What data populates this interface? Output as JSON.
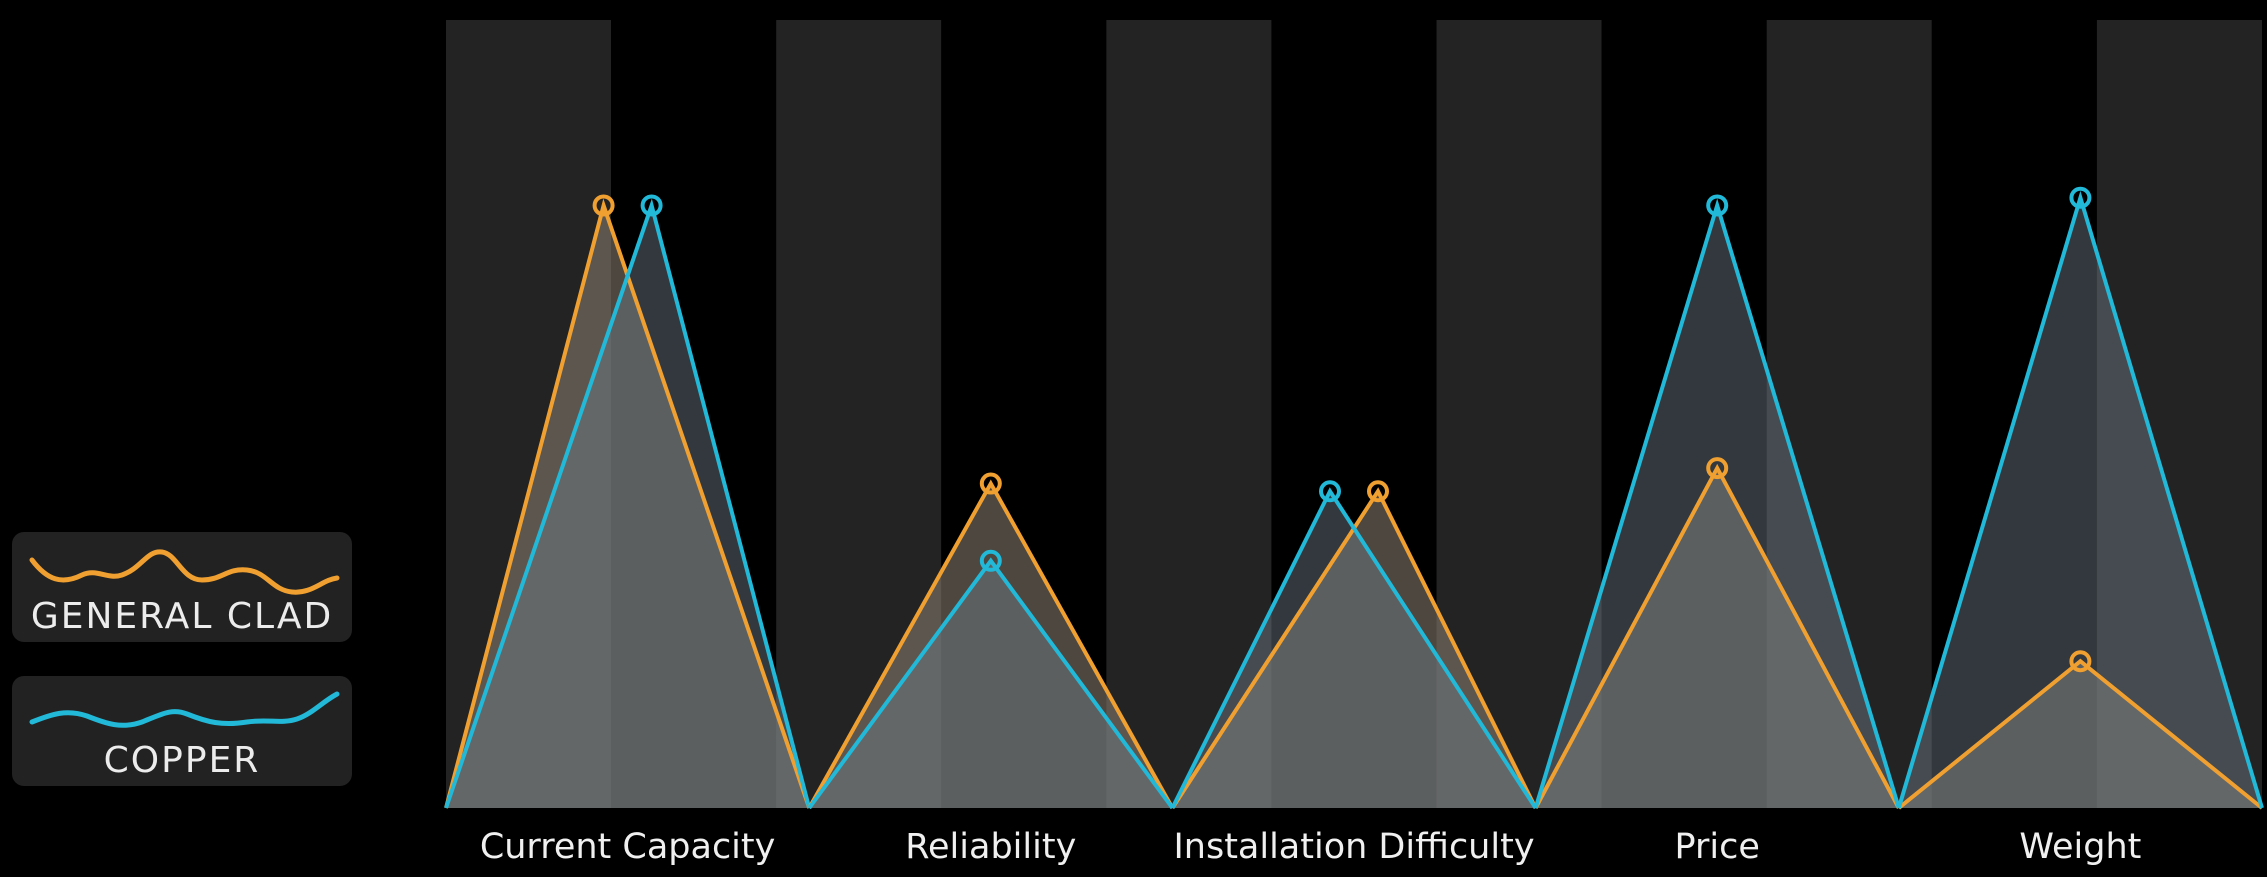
{
  "chart_data": {
    "type": "area",
    "categories": [
      "Current Capacity",
      "Reliability",
      "Installation Difficulty",
      "Price",
      "Weight"
    ],
    "series": [
      {
        "name": "GENERAL CLAD",
        "color": "#f0a030",
        "values": [
          0.78,
          0.42,
          0.41,
          0.44,
          0.19
        ]
      },
      {
        "name": "COPPER",
        "color": "#22b8d8",
        "values": [
          0.78,
          0.32,
          0.41,
          0.78,
          0.79
        ]
      }
    ],
    "ylim": [
      0,
      1
    ],
    "grid": false,
    "legend_position": "left"
  },
  "legend": {
    "items": [
      {
        "label": "GENERAL CLAD",
        "color": "#f0a030",
        "icon": "wave-line-icon"
      },
      {
        "label": "COPPER",
        "color": "#22b8d8",
        "icon": "wave-line-icon"
      }
    ]
  }
}
